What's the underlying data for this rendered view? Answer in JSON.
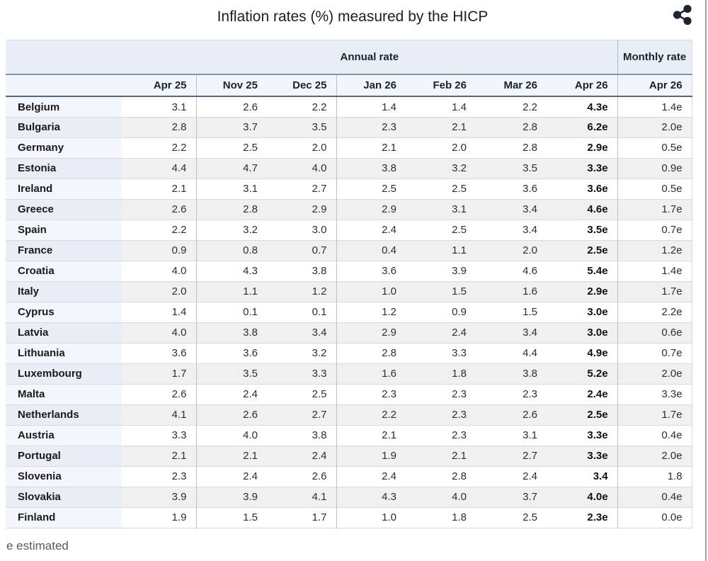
{
  "page": {
    "title": "Inflation rates (%) measured by the HICP",
    "footnote": "e estimated"
  },
  "colors": {
    "group_header_bg": "#e9edf5",
    "months_row_bg": "#f2f5fa",
    "steel_rule": "#8496ad",
    "dark_rule": "#51688a",
    "row_stripe": "#f0f0f0",
    "country_col_bg": "#f3f6fc",
    "country_col_stripe_bg": "#e9edf5",
    "share_icon_color": "#1c2530",
    "frame_border": "#a6a6a6"
  },
  "chart_data": {
    "type": "table",
    "title": "Inflation rates (%) measured by the HICP",
    "column_groups": [
      {
        "label": "Annual rate",
        "span": 7
      },
      {
        "label": "Monthly rate",
        "span": 1
      }
    ],
    "columns": [
      "Apr 25",
      "Nov 25",
      "Dec 25",
      "Jan 26",
      "Feb 26",
      "Mar 26",
      "Apr 26",
      "Apr 26"
    ],
    "bold_column_index": 6,
    "separator_column_indices": [
      0,
      2,
      6
    ],
    "rows": [
      {
        "country": "Belgium",
        "values": [
          "3.1",
          "2.6",
          "2.2",
          "1.4",
          "1.4",
          "2.2",
          "4.3e",
          "1.4e"
        ]
      },
      {
        "country": "Bulgaria",
        "values": [
          "2.8",
          "3.7",
          "3.5",
          "2.3",
          "2.1",
          "2.8",
          "6.2e",
          "2.0e"
        ]
      },
      {
        "country": "Germany",
        "values": [
          "2.2",
          "2.5",
          "2.0",
          "2.1",
          "2.0",
          "2.8",
          "2.9e",
          "0.5e"
        ]
      },
      {
        "country": "Estonia",
        "values": [
          "4.4",
          "4.7",
          "4.0",
          "3.8",
          "3.2",
          "3.5",
          "3.3e",
          "0.9e"
        ]
      },
      {
        "country": "Ireland",
        "values": [
          "2.1",
          "3.1",
          "2.7",
          "2.5",
          "2.5",
          "3.6",
          "3.6e",
          "0.5e"
        ]
      },
      {
        "country": "Greece",
        "values": [
          "2.6",
          "2.8",
          "2.9",
          "2.9",
          "3.1",
          "3.4",
          "4.6e",
          "1.7e"
        ]
      },
      {
        "country": "Spain",
        "values": [
          "2.2",
          "3.2",
          "3.0",
          "2.4",
          "2.5",
          "3.4",
          "3.5e",
          "0.7e"
        ]
      },
      {
        "country": "France",
        "values": [
          "0.9",
          "0.8",
          "0.7",
          "0.4",
          "1.1",
          "2.0",
          "2.5e",
          "1.2e"
        ]
      },
      {
        "country": "Croatia",
        "values": [
          "4.0",
          "4.3",
          "3.8",
          "3.6",
          "3.9",
          "4.6",
          "5.4e",
          "1.4e"
        ]
      },
      {
        "country": "Italy",
        "values": [
          "2.0",
          "1.1",
          "1.2",
          "1.0",
          "1.5",
          "1.6",
          "2.9e",
          "1.7e"
        ]
      },
      {
        "country": "Cyprus",
        "values": [
          "1.4",
          "0.1",
          "0.1",
          "1.2",
          "0.9",
          "1.5",
          "3.0e",
          "2.2e"
        ]
      },
      {
        "country": "Latvia",
        "values": [
          "4.0",
          "3.8",
          "3.4",
          "2.9",
          "2.4",
          "3.4",
          "3.0e",
          "0.6e"
        ]
      },
      {
        "country": "Lithuania",
        "values": [
          "3.6",
          "3.6",
          "3.2",
          "2.8",
          "3.3",
          "4.4",
          "4.9e",
          "0.7e"
        ]
      },
      {
        "country": "Luxembourg",
        "values": [
          "1.7",
          "3.5",
          "3.3",
          "1.6",
          "1.8",
          "3.8",
          "5.2e",
          "2.0e"
        ]
      },
      {
        "country": "Malta",
        "values": [
          "2.6",
          "2.4",
          "2.5",
          "2.3",
          "2.3",
          "2.3",
          "2.4e",
          "3.3e"
        ]
      },
      {
        "country": "Netherlands",
        "values": [
          "4.1",
          "2.6",
          "2.7",
          "2.2",
          "2.3",
          "2.6",
          "2.5e",
          "1.7e"
        ]
      },
      {
        "country": "Austria",
        "values": [
          "3.3",
          "4.0",
          "3.8",
          "2.1",
          "2.3",
          "3.1",
          "3.3e",
          "0.4e"
        ]
      },
      {
        "country": "Portugal",
        "values": [
          "2.1",
          "2.1",
          "2.4",
          "1.9",
          "2.1",
          "2.7",
          "3.3e",
          "2.0e"
        ]
      },
      {
        "country": "Slovenia",
        "values": [
          "2.3",
          "2.4",
          "2.6",
          "2.4",
          "2.8",
          "2.4",
          "3.4",
          "1.8"
        ]
      },
      {
        "country": "Slovakia",
        "values": [
          "3.9",
          "3.9",
          "4.1",
          "4.3",
          "4.0",
          "3.7",
          "4.0e",
          "0.4e"
        ]
      },
      {
        "country": "Finland",
        "values": [
          "1.9",
          "1.5",
          "1.7",
          "1.0",
          "1.8",
          "2.5",
          "2.3e",
          "0.0e"
        ]
      }
    ],
    "footnote": "e estimated"
  }
}
